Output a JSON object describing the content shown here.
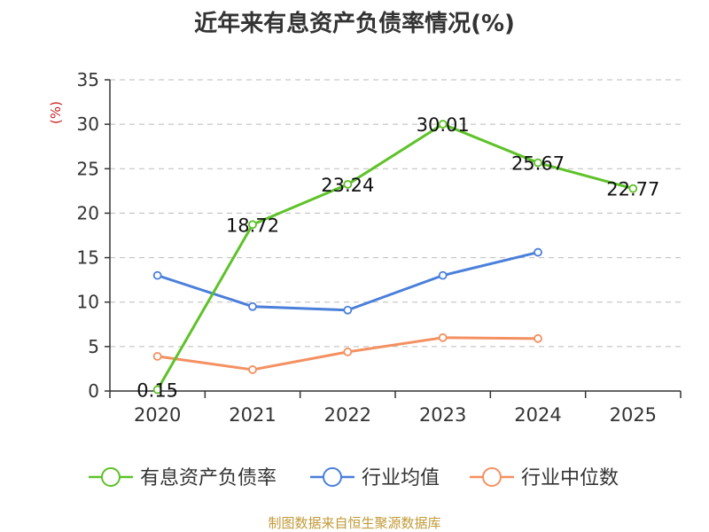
{
  "title": "近年来有息资产负债率情况(%)",
  "source": "制图数据来自恒生聚源数据库",
  "chart_data": {
    "type": "line",
    "title": "近年来有息资产负债率情况(%)",
    "ylabel": "(%)",
    "xlabel": "",
    "categories": [
      "2020",
      "2021",
      "2022",
      "2023",
      "2024",
      "2025"
    ],
    "ylim": [
      0,
      35
    ],
    "yticks": [
      0,
      5,
      10,
      15,
      20,
      25,
      30,
      35
    ],
    "grid": true,
    "legend_position": "bottom",
    "series": [
      {
        "name": "有息资产负债率",
        "color": "#5ec229",
        "values": [
          0.15,
          18.72,
          23.24,
          30.01,
          25.67,
          22.77
        ],
        "labels": [
          "0.15",
          "18.72",
          "23.24",
          "30.01",
          "25.67",
          "22.77"
        ]
      },
      {
        "name": "行业均值",
        "color": "#4a7fdb",
        "values": [
          13.0,
          9.5,
          9.1,
          13.0,
          15.6,
          null
        ]
      },
      {
        "name": "行业中位数",
        "color": "#f49061",
        "values": [
          3.9,
          2.4,
          4.4,
          6.0,
          5.9,
          null
        ]
      }
    ]
  }
}
